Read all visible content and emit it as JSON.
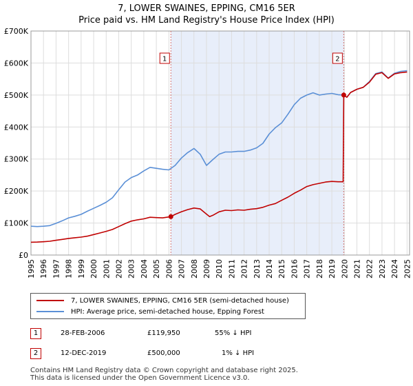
{
  "title_line1": "7, LOWER SWAINES, EPPING, CM16 5ER",
  "title_line2": "Price paid vs. HM Land Registry's House Price Index (HPI)",
  "colors": {
    "property": "#c00000",
    "hpi": "#5a8fd6",
    "shade": "#e8eefa",
    "grid": "#dddddd"
  },
  "chart_data": {
    "type": "line",
    "title": "7, LOWER SWAINES, EPPING, CM16 5ER — Price paid vs. HM Land Registry's House Price Index (HPI)",
    "xlabel": "",
    "ylabel": "",
    "xlim": [
      1995,
      2025.2
    ],
    "ylim": [
      0,
      700000
    ],
    "x_ticks": [
      1995,
      1996,
      1997,
      1998,
      1999,
      2000,
      2001,
      2002,
      2003,
      2004,
      2005,
      2006,
      2007,
      2008,
      2009,
      2010,
      2011,
      2012,
      2013,
      2014,
      2015,
      2016,
      2017,
      2018,
      2019,
      2020,
      2021,
      2022,
      2023,
      2024,
      2025
    ],
    "x_tick_labels": [
      "1995",
      "1996",
      "1997",
      "1998",
      "1999",
      "2000",
      "2001",
      "2002",
      "2003",
      "2004",
      "2005",
      "2006",
      "2007",
      "2008",
      "2009",
      "2010",
      "2011",
      "2012",
      "2013",
      "2014",
      "2015",
      "2016",
      "2017",
      "2018",
      "2019",
      "2020",
      "2021",
      "2022",
      "2023",
      "2024",
      "2025"
    ],
    "y_ticks": [
      0,
      100000,
      200000,
      300000,
      400000,
      500000,
      600000,
      700000
    ],
    "y_tick_labels": [
      "£0",
      "£100K",
      "£200K",
      "£300K",
      "£400K",
      "£500K",
      "£600K",
      "£700K"
    ],
    "shaded_region": [
      2006.16,
      2019.95
    ],
    "series": [
      {
        "name": "7, LOWER SWAINES, EPPING, CM16 5ER (semi-detached house)",
        "color": "#c00000",
        "x": [
          1995,
          1995.5,
          1996,
          1996.5,
          1997,
          1997.5,
          1998,
          1998.5,
          1999,
          1999.5,
          2000,
          2000.5,
          2001,
          2001.5,
          2002,
          2002.5,
          2003,
          2003.5,
          2004,
          2004.5,
          2005,
          2005.5,
          2006.16,
          2006.5,
          2007,
          2007.5,
          2008,
          2008.5,
          2009,
          2009.25,
          2009.5,
          2010,
          2010.5,
          2011,
          2011.5,
          2012,
          2012.5,
          2013,
          2013.5,
          2014,
          2014.5,
          2015,
          2015.5,
          2016,
          2016.5,
          2017,
          2017.5,
          2018,
          2018.5,
          2019,
          2019.5,
          2019.9,
          2019.95,
          2020.2,
          2020.5,
          2021,
          2021.5,
          2022,
          2022.5,
          2023,
          2023.5,
          2024,
          2024.5,
          2025
        ],
        "values": [
          40000,
          40500,
          41500,
          43000,
          46000,
          49000,
          52000,
          54000,
          56000,
          59000,
          64000,
          69000,
          74000,
          80000,
          89000,
          98000,
          106000,
          110000,
          113000,
          118000,
          117000,
          116000,
          119950,
          127000,
          135000,
          142000,
          147000,
          144000,
          128000,
          120000,
          124000,
          135000,
          140000,
          139000,
          141000,
          140000,
          143000,
          145000,
          149000,
          156000,
          161000,
          171000,
          181000,
          193000,
          203000,
          214000,
          220000,
          224000,
          228000,
          230000,
          229000,
          229000,
          500000,
          493000,
          508000,
          518000,
          524000,
          540000,
          565000,
          570000,
          552000,
          566000,
          570000,
          572000
        ]
      },
      {
        "name": "HPI: Average price, semi-detached house, Epping Forest",
        "color": "#5a8fd6",
        "x": [
          1995,
          1995.5,
          1996,
          1996.5,
          1997,
          1997.5,
          1998,
          1998.5,
          1999,
          1999.5,
          2000,
          2000.5,
          2001,
          2001.5,
          2002,
          2002.5,
          2003,
          2003.5,
          2004,
          2004.5,
          2005,
          2005.5,
          2006,
          2006.5,
          2007,
          2007.5,
          2008,
          2008.5,
          2009,
          2009.5,
          2010,
          2010.5,
          2011,
          2011.5,
          2012,
          2012.5,
          2013,
          2013.5,
          2014,
          2014.5,
          2015,
          2015.5,
          2016,
          2016.5,
          2017,
          2017.5,
          2018,
          2018.5,
          2019,
          2019.5,
          2019.95,
          2020.2,
          2020.5,
          2021,
          2021.5,
          2022,
          2022.5,
          2023,
          2023.5,
          2024,
          2024.5,
          2025
        ],
        "values": [
          90000,
          89000,
          90000,
          92000,
          99000,
          107000,
          116000,
          121000,
          127000,
          137000,
          146000,
          155000,
          165000,
          179000,
          204000,
          228000,
          242000,
          250000,
          263000,
          274000,
          271000,
          268000,
          266000,
          280000,
          303000,
          320000,
          333000,
          315000,
          280000,
          298000,
          315000,
          322000,
          322000,
          324000,
          324000,
          328000,
          335000,
          349000,
          378000,
          398000,
          413000,
          440000,
          470000,
          490000,
          500000,
          507000,
          500000,
          503000,
          505000,
          501000,
          500000,
          493000,
          508000,
          518000,
          524000,
          542000,
          567000,
          572000,
          553000,
          568000,
          574000,
          576000
        ]
      }
    ],
    "markers": [
      {
        "label": "1",
        "x": 2006.16,
        "value": 119950
      },
      {
        "label": "2",
        "x": 2019.95,
        "value": 500000
      }
    ]
  },
  "legend": {
    "property": "7, LOWER SWAINES, EPPING, CM16 5ER (semi-detached house)",
    "hpi": "HPI: Average price, semi-detached house, Epping Forest"
  },
  "transactions": [
    {
      "num": "1",
      "date": "28-FEB-2006",
      "price": "£119,950",
      "delta": "55% ↓ HPI"
    },
    {
      "num": "2",
      "date": "12-DEC-2019",
      "price": "£500,000",
      "delta": "1% ↓ HPI"
    }
  ],
  "footer": {
    "line1": "Contains HM Land Registry data © Crown copyright and database right 2025.",
    "line2": "This data is licensed under the Open Government Licence v3.0."
  }
}
